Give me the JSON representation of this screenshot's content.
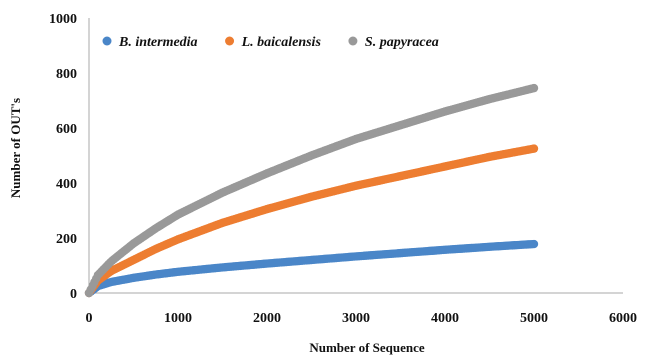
{
  "chart_data": {
    "type": "scatter",
    "xlabel": "Number of Sequence",
    "ylabel": "Number of OUT's",
    "xlim": [
      0,
      6000
    ],
    "ylim": [
      0,
      1000
    ],
    "xticks": [
      0,
      1000,
      2000,
      3000,
      4000,
      5000,
      6000
    ],
    "yticks": [
      0,
      200,
      400,
      600,
      800,
      1000
    ],
    "grid": false,
    "legend_position": "top",
    "series": [
      {
        "name": "B. intermedia",
        "color": "#4a86c8",
        "x": [
          0,
          100,
          250,
          500,
          750,
          1000,
          1500,
          2000,
          2500,
          3000,
          3500,
          4000,
          4500,
          5000
        ],
        "y": [
          0,
          25,
          40,
          55,
          67,
          77,
          93,
          107,
          120,
          133,
          145,
          157,
          168,
          178
        ]
      },
      {
        "name": "L. baicalensis",
        "color": "#ed7d31",
        "x": [
          0,
          100,
          250,
          500,
          750,
          1000,
          1500,
          2000,
          2500,
          3000,
          3500,
          4000,
          4500,
          5000
        ],
        "y": [
          0,
          45,
          80,
          120,
          160,
          195,
          255,
          305,
          350,
          390,
          425,
          460,
          495,
          525
        ]
      },
      {
        "name": "S. papyracea",
        "color": "#999999",
        "x": [
          0,
          100,
          250,
          500,
          750,
          1000,
          1500,
          2000,
          2500,
          3000,
          3500,
          4000,
          4500,
          5000
        ],
        "y": [
          0,
          65,
          115,
          180,
          235,
          285,
          365,
          435,
          500,
          560,
          610,
          660,
          705,
          745
        ]
      }
    ]
  }
}
